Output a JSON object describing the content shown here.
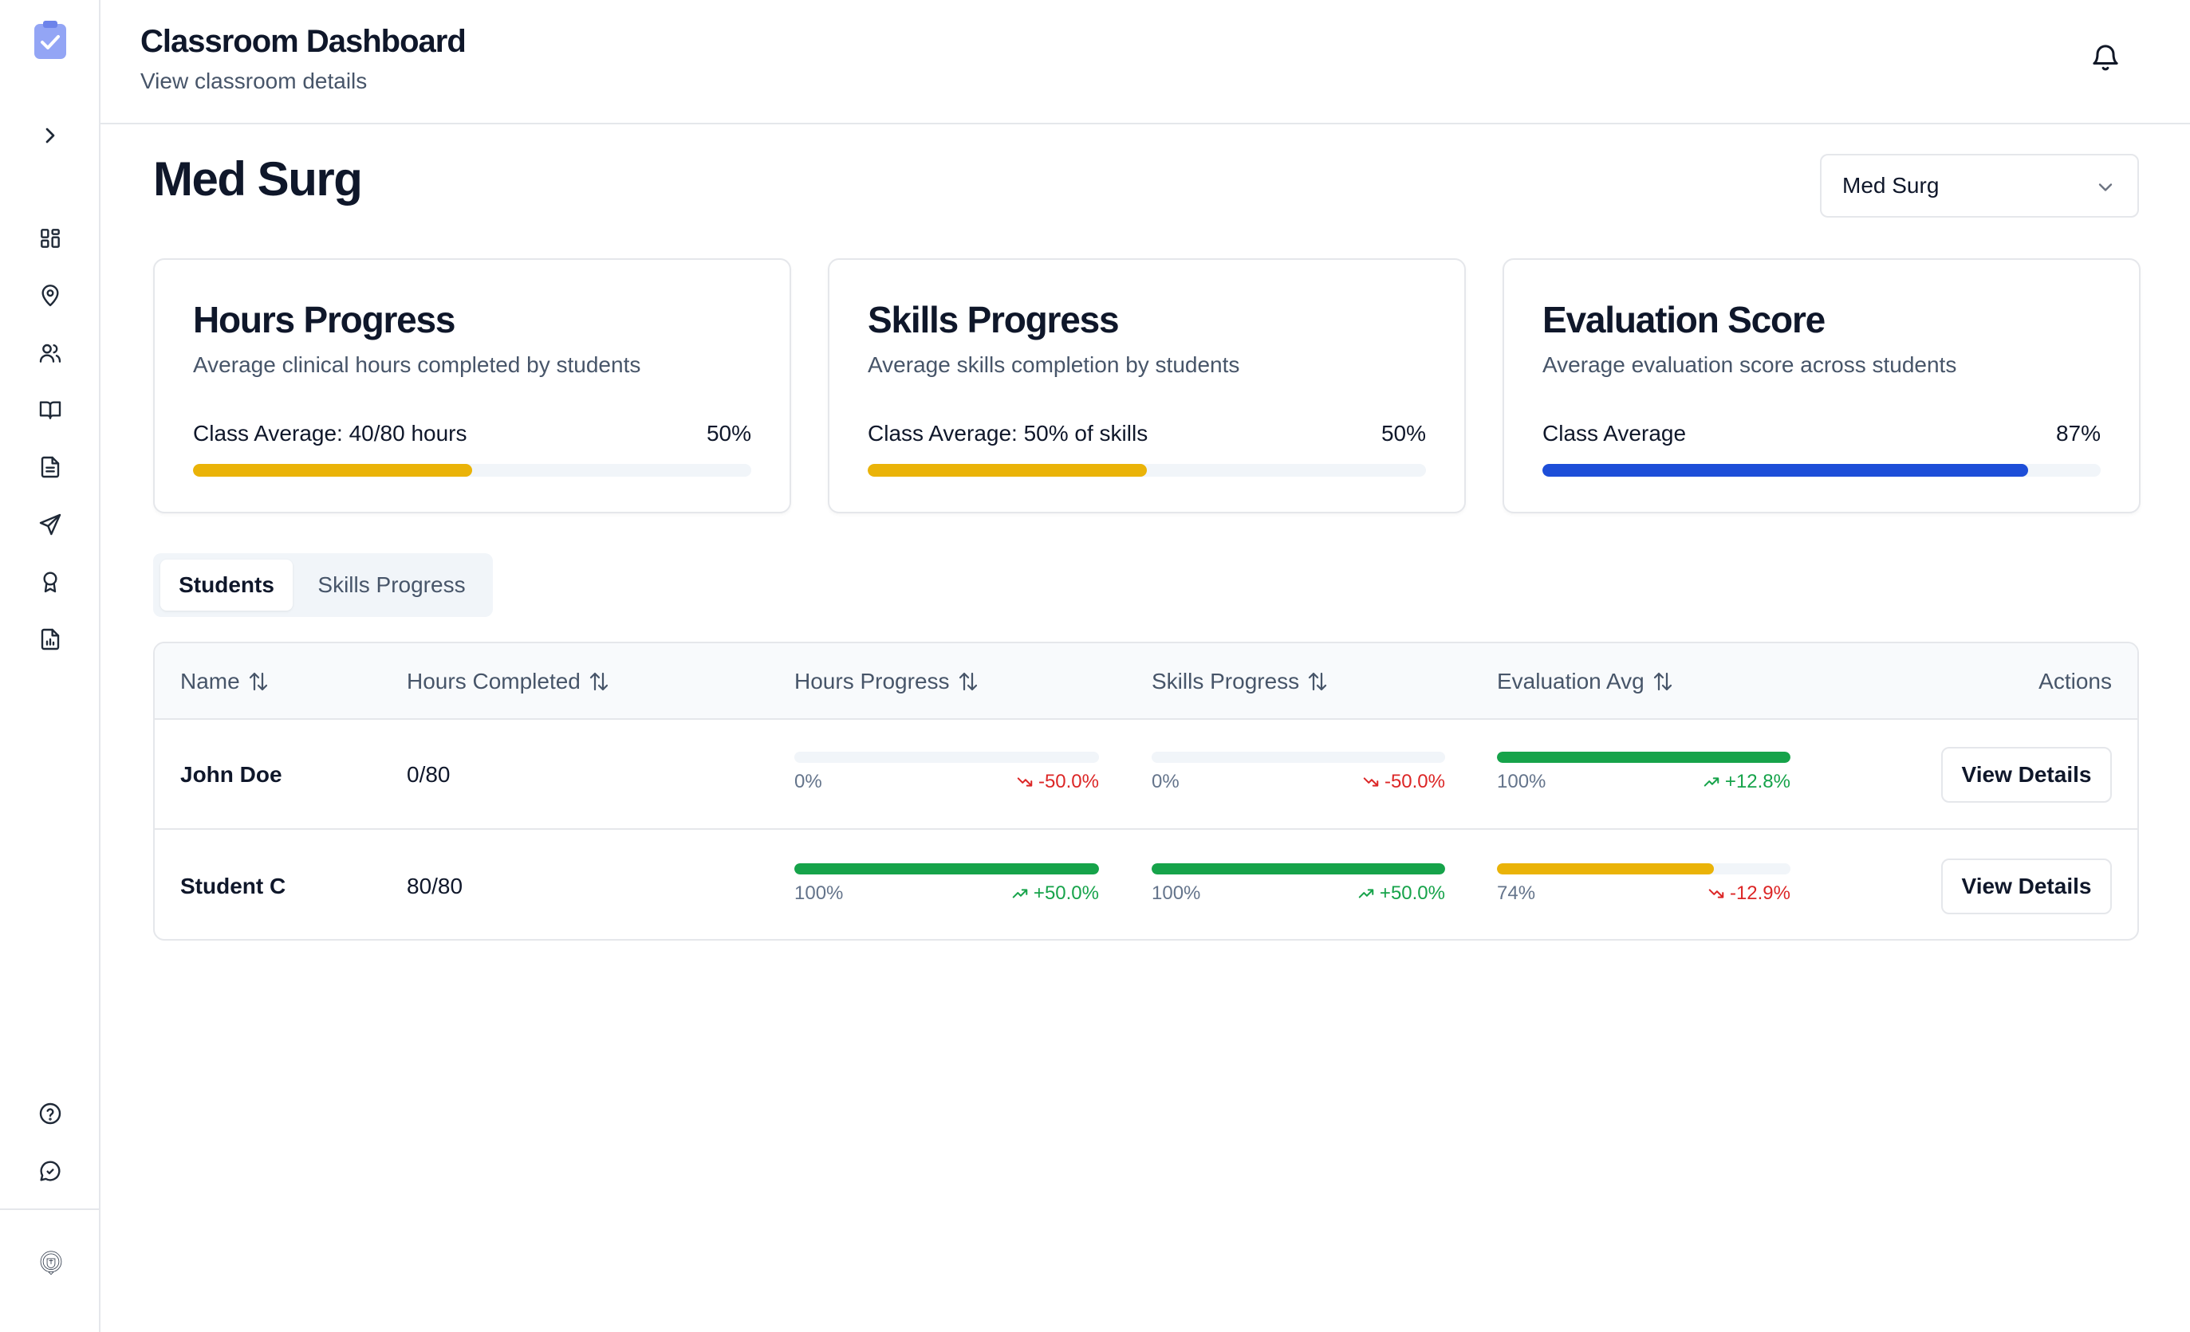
{
  "header": {
    "title": "Classroom Dashboard",
    "subtitle": "View classroom details"
  },
  "page": {
    "title": "Med Surg"
  },
  "class_select": {
    "value": "Med Surg"
  },
  "cards": [
    {
      "title": "Hours Progress",
      "description": "Average clinical hours completed by students",
      "label": "Class Average: 40/80 hours",
      "value": "50%",
      "progress": 50,
      "color": "#eab308"
    },
    {
      "title": "Skills Progress",
      "description": "Average skills completion by students",
      "label": "Class Average: 50% of skills",
      "value": "50%",
      "progress": 50,
      "color": "#eab308"
    },
    {
      "title": "Evaluation Score",
      "description": "Average evaluation score across students",
      "label": "Class Average",
      "value": "87%",
      "progress": 87,
      "color": "#1d4ed8"
    }
  ],
  "tabs": [
    {
      "label": "Students"
    },
    {
      "label": "Skills Progress"
    }
  ],
  "table": {
    "headers": {
      "name": "Name",
      "hours": "Hours Completed",
      "hours_progress": "Hours Progress",
      "skills_progress": "Skills Progress",
      "evaluation": "Evaluation Avg",
      "actions": "Actions"
    },
    "rows": [
      {
        "name": "John Doe",
        "hours": "0/80",
        "hours_progress": {
          "pct": "0%",
          "value": 0,
          "trend": "-50.0%",
          "dir": "down",
          "color": "#16a34a"
        },
        "skills_progress": {
          "pct": "0%",
          "value": 0,
          "trend": "-50.0%",
          "dir": "down",
          "color": "#16a34a"
        },
        "evaluation": {
          "pct": "100%",
          "value": 100,
          "trend": "+12.8%",
          "dir": "up",
          "color": "#16a34a"
        },
        "action": "View Details"
      },
      {
        "name": "Student C",
        "hours": "80/80",
        "hours_progress": {
          "pct": "100%",
          "value": 100,
          "trend": "+50.0%",
          "dir": "up",
          "color": "#16a34a"
        },
        "skills_progress": {
          "pct": "100%",
          "value": 100,
          "trend": "+50.0%",
          "dir": "up",
          "color": "#16a34a"
        },
        "evaluation": {
          "pct": "74%",
          "value": 74,
          "trend": "-12.9%",
          "dir": "down",
          "color": "#eab308"
        },
        "action": "View Details"
      }
    ]
  },
  "sidebar": {
    "icons": [
      "app-logo",
      "expand-chevron-icon",
      "dashboard-icon",
      "location-pin-icon",
      "users-icon",
      "book-icon",
      "document-icon",
      "send-icon",
      "award-icon",
      "report-icon",
      "help-icon",
      "chat-icon",
      "university-seal"
    ]
  }
}
